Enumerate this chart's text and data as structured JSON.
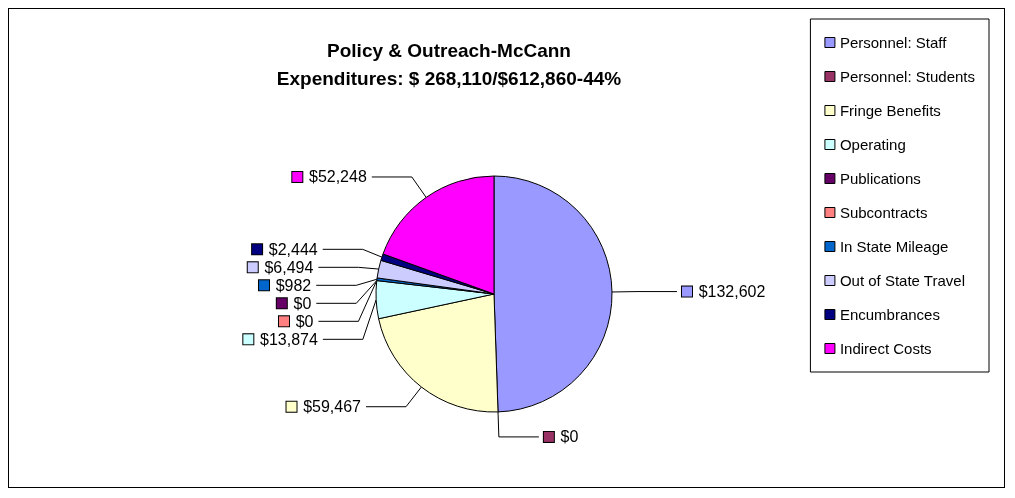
{
  "chart_data": {
    "type": "pie",
    "title": "Policy & Outreach-McCann\nExpenditures: $ 268,110/$612,860-44%",
    "categories": [
      "Personnel: Staff",
      "Personnel: Students",
      "Fringe Benefits",
      "Operating",
      "Publications",
      "Subcontracts",
      "In State Mileage",
      "Out of State Travel",
      "Encumbrances",
      "Indirect Costs"
    ],
    "values": [
      132602,
      0,
      59467,
      13874,
      0,
      0,
      982,
      6494,
      2444,
      52248
    ],
    "value_labels": [
      "$132,602",
      "$0",
      "$59,467",
      "$13,874",
      "$0",
      "$0",
      "$982",
      "$6,494",
      "$2,444",
      "$52,248"
    ],
    "colors": [
      "#9999ff",
      "#993366",
      "#ffffcc",
      "#ccffff",
      "#660066",
      "#ff8080",
      "#0066cc",
      "#ccccff",
      "#000080",
      "#ff00ff"
    ],
    "legend": "right"
  }
}
